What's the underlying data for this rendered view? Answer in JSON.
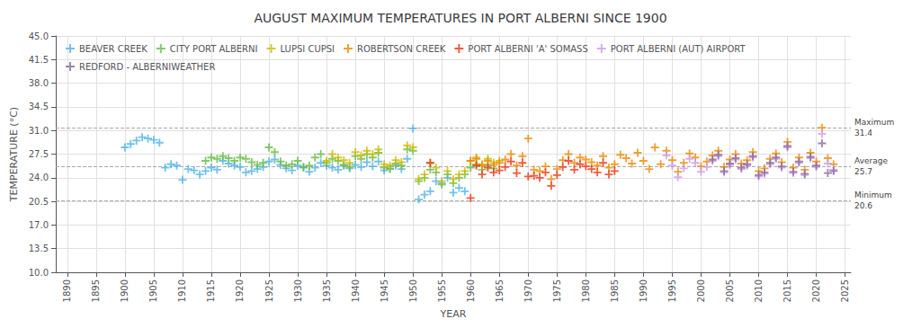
{
  "chart_data": {
    "type": "scatter",
    "title": "AUGUST MAXIMUM TEMPERATURES IN PORT ALBERNI SINCE 1900",
    "xlabel": "YEAR",
    "ylabel": "TEMPERATURE (°C)",
    "xlim": [
      1888,
      2026
    ],
    "ylim": [
      10.0,
      45.0
    ],
    "xticks": [
      1890,
      1895,
      1900,
      1905,
      1910,
      1915,
      1920,
      1925,
      1930,
      1935,
      1940,
      1945,
      1950,
      1955,
      1960,
      1965,
      1970,
      1975,
      1980,
      1985,
      1990,
      1995,
      2000,
      2005,
      2010,
      2015,
      2020,
      2025
    ],
    "yticks": [
      {
        "value": 10.0,
        "label": "10.0"
      },
      13.5,
      {
        "value": 17.0,
        "label": "17.0"
      },
      20.5,
      {
        "value": 24.0,
        "label": "24.0"
      },
      27.5,
      {
        "value": 31.0,
        "label": "31.0"
      },
      34.5,
      {
        "value": 38.0,
        "label": "38.0"
      },
      41.5,
      {
        "value": 45.0,
        "label": "45.0"
      }
    ],
    "grid": true,
    "legend": "upper left",
    "marker": "plus",
    "annotations": [
      {
        "y": 31.4,
        "label": "Maximum",
        "value_label": "31.4"
      },
      {
        "y": 25.7,
        "label": "Average",
        "value_label": "25.7"
      },
      {
        "y": 20.6,
        "label": "Minimum",
        "value_label": "20.6"
      }
    ],
    "series": [
      {
        "name": "BEAVER CREEK",
        "color": "#4db3e6",
        "x": [
          1900,
          1901,
          1902,
          1903,
          1904,
          1905,
          1906,
          1907,
          1908,
          1909,
          1910,
          1911,
          1912,
          1913,
          1914,
          1915,
          1916,
          1917,
          1918,
          1919,
          1920,
          1921,
          1922,
          1923,
          1924,
          1925,
          1926,
          1927,
          1928,
          1929,
          1930,
          1931,
          1932,
          1933,
          1934,
          1935,
          1936,
          1937,
          1938,
          1939,
          1940,
          1941,
          1942,
          1943,
          1944,
          1945,
          1946,
          1947,
          1948,
          1949,
          1950,
          1951,
          1952,
          1953,
          1954,
          1955,
          1956,
          1957,
          1958,
          1959
        ],
        "values": [
          28.5,
          29.0,
          29.5,
          30.0,
          29.8,
          29.6,
          29.2,
          25.5,
          26.0,
          25.8,
          23.7,
          25.3,
          25.1,
          24.5,
          25.0,
          25.5,
          25.2,
          26.5,
          26.1,
          25.8,
          25.6,
          24.8,
          25.0,
          25.3,
          25.6,
          26.4,
          26.7,
          25.9,
          25.4,
          25.1,
          25.8,
          25.6,
          24.9,
          25.5,
          26.2,
          25.8,
          25.5,
          25.2,
          25.8,
          25.4,
          25.9,
          25.6,
          26.3,
          25.7,
          26.4,
          25.1,
          25.4,
          25.8,
          25.3,
          26.8,
          31.3,
          20.8,
          21.5,
          22.0,
          23.5,
          23.2,
          24.0,
          21.8,
          22.5,
          22.0
        ]
      },
      {
        "name": "CITY PORT ALBERNI",
        "color": "#66bb44",
        "x": [
          1914,
          1915,
          1916,
          1917,
          1918,
          1919,
          1920,
          1921,
          1922,
          1923,
          1924,
          1925,
          1926,
          1927,
          1928,
          1929,
          1930,
          1931,
          1932,
          1933,
          1934,
          1935,
          1936,
          1937,
          1938,
          1939,
          1940,
          1941,
          1942,
          1943,
          1944,
          1945,
          1946,
          1947,
          1948,
          1949,
          1950,
          1951,
          1952,
          1953,
          1954,
          1955,
          1956,
          1957,
          1958,
          1959,
          1960,
          1961,
          1962,
          1963,
          1964
        ],
        "values": [
          26.5,
          27.0,
          26.8,
          27.2,
          26.9,
          26.5,
          27.0,
          26.8,
          26.3,
          25.9,
          26.2,
          28.5,
          27.8,
          26.4,
          25.8,
          26.0,
          26.5,
          25.5,
          25.8,
          27.0,
          27.5,
          26.2,
          26.8,
          26.5,
          25.9,
          25.6,
          27.2,
          26.8,
          27.5,
          27.0,
          27.7,
          25.5,
          25.3,
          26.1,
          25.8,
          28.2,
          28.0,
          23.5,
          24.0,
          25.2,
          24.8,
          23.0,
          24.5,
          23.2,
          24.0,
          24.5,
          25.5,
          26.0,
          25.2,
          25.8,
          25.4
        ]
      },
      {
        "name": "LUPSI CUPSI",
        "color": "#ccbb00",
        "x": [
          1935,
          1936,
          1937,
          1938,
          1939,
          1940,
          1941,
          1942,
          1943,
          1944,
          1945,
          1946,
          1947,
          1948,
          1949,
          1950,
          1951,
          1952,
          1953,
          1954,
          1955,
          1956,
          1957,
          1958,
          1959,
          1960,
          1961,
          1962,
          1963,
          1964,
          1965
        ],
        "values": [
          26.5,
          27.5,
          27.0,
          26.6,
          26.2,
          27.8,
          27.3,
          28.0,
          27.5,
          28.2,
          26.0,
          25.8,
          26.6,
          26.3,
          28.8,
          28.5,
          23.8,
          24.5,
          26.2,
          25.5,
          23.5,
          25.0,
          23.8,
          24.5,
          25.0,
          26.5,
          27.0,
          26.0,
          26.8,
          26.2,
          26.5
        ]
      },
      {
        "name": "ROBERTSON CREEK",
        "color": "#ee8800",
        "x": [
          1960,
          1961,
          1962,
          1963,
          1964,
          1965,
          1966,
          1967,
          1968,
          1969,
          1970,
          1971,
          1972,
          1973,
          1974,
          1975,
          1976,
          1977,
          1978,
          1979,
          1980,
          1981,
          1982,
          1983,
          1984,
          1985,
          1986,
          1987,
          1988,
          1989,
          1990,
          1991,
          1992,
          1993,
          1994,
          1995,
          1996,
          1997,
          1998,
          1999,
          2000,
          2001,
          2002,
          2003,
          2004,
          2005,
          2006,
          2007,
          2008,
          2009,
          2010,
          2011,
          2012,
          2013,
          2014,
          2015,
          2016,
          2017,
          2018,
          2019,
          2020,
          2021,
          2022,
          2023
        ],
        "values": [
          26.5,
          26.8,
          25.8,
          26.5,
          25.9,
          26.2,
          26.7,
          27.5,
          25.8,
          27.2,
          29.8,
          25.2,
          25.0,
          25.7,
          23.8,
          25.3,
          26.6,
          27.5,
          26.2,
          27.0,
          26.7,
          26.3,
          25.8,
          27.2,
          25.5,
          26.0,
          27.4,
          26.9,
          26.1,
          27.7,
          26.5,
          25.3,
          28.5,
          26.0,
          28.0,
          26.6,
          24.9,
          26.2,
          27.6,
          27.0,
          25.7,
          26.4,
          27.3,
          28.0,
          25.6,
          26.7,
          27.5,
          26.1,
          26.6,
          27.8,
          25.0,
          25.4,
          26.8,
          27.6,
          26.3,
          29.3,
          25.5,
          27.0,
          25.2,
          27.7,
          26.4,
          31.4,
          26.9,
          26.0
        ]
      },
      {
        "name": "PORT ALBERNI 'A' SOMASS",
        "color": "#ee3311",
        "x": [
          1953,
          1960,
          1961,
          1962,
          1963,
          1964,
          1965,
          1966,
          1967,
          1968,
          1969,
          1970,
          1971,
          1972,
          1973,
          1974,
          1975,
          1976,
          1977,
          1978,
          1979,
          1980,
          1981,
          1982,
          1983,
          1984,
          1985
        ],
        "values": [
          26.2,
          21.0,
          25.8,
          24.5,
          25.5,
          24.8,
          25.1,
          25.6,
          26.4,
          24.7,
          26.2,
          24.2,
          24.3,
          24.0,
          24.8,
          22.8,
          24.4,
          25.6,
          26.5,
          25.2,
          26.0,
          25.7,
          25.3,
          24.8,
          26.2,
          24.5,
          25.0
        ]
      },
      {
        "name": "PORT ALBERNI (AUT) AIRPORT",
        "color": "#cc99ee",
        "x": [
          1994,
          1995,
          1996,
          1997,
          1998,
          1999,
          2000,
          2001,
          2002,
          2003,
          2004,
          2005,
          2006,
          2007,
          2008,
          2009,
          2010,
          2011,
          2012,
          2013,
          2014,
          2015,
          2016,
          2017,
          2018,
          2019,
          2020,
          2021,
          2022,
          2023
        ],
        "values": [
          27.3,
          25.8,
          24.1,
          25.4,
          26.8,
          26.2,
          24.9,
          25.6,
          26.5,
          27.2,
          24.8,
          25.9,
          26.7,
          25.3,
          25.8,
          27.0,
          24.2,
          24.6,
          26.0,
          26.8,
          25.5,
          28.5,
          24.7,
          26.2,
          24.4,
          26.9,
          25.6,
          30.5,
          26.1,
          25.2
        ]
      },
      {
        "name": "REDFORD - ALBERNIWEATHER",
        "color": "#886699",
        "x": [
          2002,
          2003,
          2004,
          2005,
          2006,
          2007,
          2008,
          2009,
          2010,
          2011,
          2012,
          2013,
          2014,
          2015,
          2016,
          2017,
          2018,
          2019,
          2020,
          2021,
          2022,
          2023
        ],
        "values": [
          26.7,
          27.4,
          25.0,
          26.1,
          26.9,
          25.5,
          26.0,
          27.2,
          24.4,
          24.8,
          26.2,
          27.0,
          25.7,
          28.7,
          24.9,
          26.4,
          24.6,
          27.1,
          25.8,
          29.1,
          24.7,
          25.0
        ]
      }
    ]
  }
}
